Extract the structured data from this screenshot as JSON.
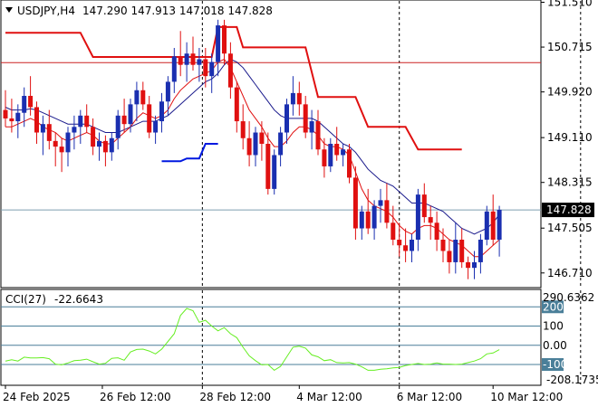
{
  "header": {
    "symbol": "USDJPY,H4",
    "ohlc": "147.290 147.913 147.018 147.828"
  },
  "colors": {
    "bull": "#1a2fb0",
    "bear": "#e01010",
    "wick": "#000000",
    "ma_fast": "#e01010",
    "ma_slow": "#1a1a8c",
    "resistance": "#e01010",
    "support": "#0018e0",
    "cci": "#66ee22",
    "level_line": "#cc2222",
    "price_tag": "#000000"
  },
  "chart_data": [
    {
      "type": "candlestick",
      "title": "",
      "ylim": [
        146.45,
        151.55
      ],
      "y_ticks": [
        "151.510",
        "150.715",
        "149.920",
        "149.110",
        "148.315",
        "147.505",
        "146.710"
      ],
      "x_ticks": [
        "24 Feb 2025",
        "26 Feb 12:00",
        "28 Feb 12:00",
        "4 Mar 12:00",
        "6 Mar 12:00",
        "10 Mar 12:00"
      ],
      "current_price": "147.828",
      "current_price_value": 147.828,
      "horizontal_level": 150.44,
      "ohlc": [
        [
          149.6,
          149.95,
          149.3,
          149.45
        ],
        [
          149.45,
          149.8,
          149.2,
          149.4
        ],
        [
          149.4,
          149.7,
          149.1,
          149.55
        ],
        [
          149.55,
          150.0,
          149.3,
          149.85
        ],
        [
          149.85,
          150.2,
          149.5,
          149.65
        ],
        [
          149.65,
          149.75,
          149.0,
          149.2
        ],
        [
          149.2,
          149.5,
          148.8,
          149.35
        ],
        [
          149.35,
          149.6,
          148.9,
          149.05
        ],
        [
          149.05,
          149.2,
          148.6,
          148.95
        ],
        [
          148.95,
          149.1,
          148.5,
          148.85
        ],
        [
          148.85,
          149.3,
          148.6,
          149.2
        ],
        [
          149.2,
          149.5,
          148.9,
          149.3
        ],
        [
          149.3,
          149.6,
          149.0,
          149.5
        ],
        [
          149.5,
          149.7,
          149.2,
          149.3
        ],
        [
          149.3,
          149.45,
          148.8,
          148.95
        ],
        [
          148.95,
          149.2,
          148.7,
          149.05
        ],
        [
          149.05,
          149.15,
          148.6,
          148.85
        ],
        [
          148.85,
          149.2,
          148.7,
          149.1
        ],
        [
          149.1,
          149.6,
          148.9,
          149.5
        ],
        [
          149.5,
          149.8,
          149.2,
          149.35
        ],
        [
          149.35,
          149.8,
          149.2,
          149.7
        ],
        [
          149.7,
          150.1,
          149.4,
          149.95
        ],
        [
          149.95,
          150.1,
          149.6,
          149.7
        ],
        [
          149.7,
          149.85,
          149.1,
          149.2
        ],
        [
          149.2,
          149.5,
          149.0,
          149.4
        ],
        [
          149.4,
          149.9,
          149.2,
          149.75
        ],
        [
          149.75,
          150.2,
          149.5,
          150.1
        ],
        [
          150.1,
          150.7,
          149.9,
          150.55
        ],
        [
          150.55,
          151.0,
          150.2,
          150.4
        ],
        [
          150.4,
          150.8,
          150.1,
          150.6
        ],
        [
          150.6,
          150.9,
          150.3,
          150.4
        ],
        [
          150.4,
          150.7,
          150.1,
          150.5
        ],
        [
          150.5,
          150.7,
          150.0,
          150.2
        ],
        [
          150.2,
          150.6,
          149.9,
          150.45
        ],
        [
          150.45,
          151.2,
          150.2,
          151.1
        ],
        [
          151.1,
          151.2,
          150.4,
          150.6
        ],
        [
          150.6,
          150.8,
          149.8,
          150.0
        ],
        [
          150.0,
          150.1,
          149.2,
          149.4
        ],
        [
          149.4,
          149.7,
          148.9,
          149.1
        ],
        [
          149.1,
          149.4,
          148.6,
          148.8
        ],
        [
          148.8,
          149.3,
          148.6,
          149.2
        ],
        [
          149.2,
          149.4,
          148.7,
          149.0
        ],
        [
          149.0,
          149.2,
          148.1,
          148.2
        ],
        [
          148.2,
          148.9,
          148.1,
          148.8
        ],
        [
          148.8,
          149.3,
          148.6,
          149.2
        ],
        [
          149.2,
          149.8,
          149.0,
          149.7
        ],
        [
          149.7,
          150.2,
          149.5,
          149.9
        ],
        [
          149.9,
          150.1,
          149.5,
          149.7
        ],
        [
          149.7,
          149.85,
          149.1,
          149.2
        ],
        [
          149.2,
          149.6,
          148.9,
          149.4
        ],
        [
          149.4,
          149.6,
          148.8,
          148.9
        ],
        [
          148.9,
          149.1,
          148.4,
          148.6
        ],
        [
          148.6,
          149.1,
          148.5,
          149.0
        ],
        [
          149.0,
          149.3,
          148.7,
          148.8
        ],
        [
          148.8,
          149.0,
          148.6,
          148.9
        ],
        [
          148.9,
          149.0,
          148.3,
          148.4
        ],
        [
          148.4,
          148.6,
          147.3,
          147.5
        ],
        [
          147.5,
          147.9,
          147.3,
          147.8
        ],
        [
          147.8,
          148.2,
          147.4,
          147.5
        ],
        [
          147.5,
          148.0,
          147.3,
          147.9
        ],
        [
          147.9,
          148.2,
          147.6,
          148.0
        ],
        [
          148.0,
          148.3,
          147.5,
          147.6
        ],
        [
          147.6,
          147.9,
          147.2,
          147.3
        ],
        [
          147.3,
          147.6,
          147.0,
          147.2
        ],
        [
          147.2,
          147.5,
          146.9,
          147.1
        ],
        [
          147.1,
          147.4,
          146.9,
          147.3
        ],
        [
          147.3,
          148.2,
          147.1,
          148.1
        ],
        [
          148.1,
          148.3,
          147.6,
          147.7
        ],
        [
          147.7,
          147.9,
          147.3,
          147.6
        ],
        [
          147.6,
          147.8,
          147.1,
          147.3
        ],
        [
          147.3,
          147.5,
          146.9,
          147.1
        ],
        [
          147.1,
          147.3,
          146.7,
          146.9
        ],
        [
          146.9,
          147.6,
          146.7,
          147.3
        ],
        [
          147.3,
          147.5,
          146.8,
          146.9
        ],
        [
          146.9,
          147.0,
          146.6,
          146.8
        ],
        [
          146.8,
          147.1,
          146.6,
          146.9
        ],
        [
          146.9,
          147.4,
          146.7,
          147.3
        ],
        [
          147.3,
          147.9,
          147.2,
          147.8
        ],
        [
          147.8,
          148.1,
          147.2,
          147.3
        ],
        [
          147.3,
          147.9,
          147.0,
          147.83
        ]
      ],
      "ma_fast": [
        149.3,
        149.3,
        149.35,
        149.4,
        149.45,
        149.4,
        149.3,
        149.25,
        149.2,
        149.1,
        149.05,
        149.1,
        149.15,
        149.2,
        149.15,
        149.05,
        149.0,
        149.0,
        149.1,
        149.2,
        149.3,
        149.45,
        149.55,
        149.5,
        149.45,
        149.5,
        149.6,
        149.8,
        149.95,
        150.05,
        150.15,
        150.2,
        150.25,
        150.3,
        150.45,
        150.5,
        150.35,
        150.1,
        149.85,
        149.6,
        149.45,
        149.3,
        149.1,
        148.95,
        148.95,
        149.05,
        149.2,
        149.3,
        149.3,
        149.25,
        149.15,
        149.0,
        148.95,
        148.95,
        148.9,
        148.8,
        148.5,
        148.2,
        148.0,
        147.9,
        147.85,
        147.8,
        147.7,
        147.55,
        147.45,
        147.4,
        147.5,
        147.55,
        147.55,
        147.5,
        147.4,
        147.3,
        147.25,
        147.2,
        147.1,
        147.0,
        147.0,
        147.1,
        147.2,
        147.3
      ],
      "ma_slow": [
        149.65,
        149.6,
        149.6,
        149.6,
        149.62,
        149.6,
        149.55,
        149.5,
        149.45,
        149.4,
        149.35,
        149.35,
        149.35,
        149.35,
        149.3,
        149.25,
        149.2,
        149.2,
        149.2,
        149.25,
        149.3,
        149.35,
        149.4,
        149.4,
        149.4,
        149.45,
        149.5,
        149.6,
        149.7,
        149.8,
        149.9,
        150.0,
        150.1,
        150.15,
        150.25,
        150.4,
        150.5,
        150.45,
        150.35,
        150.2,
        150.05,
        149.9,
        149.75,
        149.6,
        149.5,
        149.45,
        149.45,
        149.45,
        149.45,
        149.45,
        149.4,
        149.3,
        149.2,
        149.1,
        149.0,
        148.95,
        148.85,
        148.7,
        148.55,
        148.45,
        148.35,
        148.3,
        148.25,
        148.15,
        148.05,
        147.95,
        147.95,
        147.95,
        147.9,
        147.85,
        147.8,
        147.7,
        147.6,
        147.5,
        147.45,
        147.4,
        147.45,
        147.5,
        147.6,
        147.75
      ],
      "resistance_line": [
        {
          "x": 0,
          "y": 150.97
        },
        {
          "x": 12,
          "y": 150.97
        },
        {
          "x": 14,
          "y": 150.54
        },
        {
          "x": 33,
          "y": 150.54
        },
        {
          "x": 34,
          "y": 151.07
        },
        {
          "x": 37,
          "y": 151.07
        },
        {
          "x": 38,
          "y": 150.71
        },
        {
          "x": 48,
          "y": 150.71
        },
        {
          "x": 50,
          "y": 149.83
        },
        {
          "x": 56,
          "y": 149.83
        },
        {
          "x": 58,
          "y": 149.3
        },
        {
          "x": 64,
          "y": 149.3
        },
        {
          "x": 66,
          "y": 148.9
        },
        {
          "x": 73,
          "y": 148.9
        }
      ],
      "support_line": [
        {
          "x": 25,
          "y": 148.69
        },
        {
          "x": 28,
          "y": 148.69
        },
        {
          "x": 29,
          "y": 148.74
        },
        {
          "x": 31,
          "y": 148.74
        },
        {
          "x": 32,
          "y": 149.0
        },
        {
          "x": 34,
          "y": 149.0
        }
      ]
    },
    {
      "type": "line",
      "title": "",
      "label": "CCI(27)",
      "value": "-22.6643",
      "max_label": "290.6362",
      "min_label": "-208.1735",
      "ylim": [
        -208.1735,
        290.6362
      ],
      "levels": [
        {
          "label": "200",
          "value": 200,
          "highlight": true
        },
        {
          "label": "100",
          "value": 100,
          "highlight": false
        },
        {
          "label": "0.00",
          "value": 0,
          "highlight": false
        },
        {
          "label": "-100",
          "value": -100,
          "highlight": true
        }
      ],
      "values": [
        -82,
        -75,
        -82,
        -62,
        -66,
        -66,
        -64,
        -70,
        -98,
        -102,
        -92,
        -80,
        -78,
        -72,
        -86,
        -98,
        -94,
        -68,
        -65,
        -78,
        -35,
        -22,
        -20,
        -30,
        -45,
        -20,
        20,
        60,
        155,
        192,
        180,
        120,
        130,
        100,
        75,
        92,
        60,
        40,
        -10,
        -55,
        -80,
        -102,
        -100,
        -130,
        -110,
        -60,
        -10,
        -5,
        -15,
        -50,
        -60,
        -80,
        -75,
        -90,
        -92,
        -90,
        -98,
        -112,
        -130,
        -130,
        -125,
        -122,
        -118,
        -115,
        -105,
        -100,
        -95,
        -100,
        -98,
        -92,
        -98,
        -98,
        -100,
        -98,
        -90,
        -82,
        -70,
        -45,
        -40,
        -22.66
      ]
    }
  ]
}
